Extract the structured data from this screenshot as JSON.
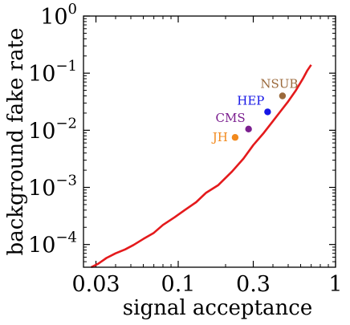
{
  "chart_data": {
    "type": "line",
    "xlabel": "signal acceptance",
    "ylabel": "background fake rate",
    "x_scale": "log",
    "y_scale": "log",
    "xlim": [
      0.025,
      1.0
    ],
    "ylim": [
      4e-05,
      1.0
    ],
    "x_ticks": [
      {
        "value": 0.03,
        "label": "0.03"
      },
      {
        "value": 0.1,
        "label": "0.1"
      },
      {
        "value": 0.3,
        "label": "0.3"
      },
      {
        "value": 1.0,
        "label": "1"
      }
    ],
    "y_ticks": [
      {
        "value": 0.0001,
        "base": "10",
        "exp": "−4"
      },
      {
        "value": 0.001,
        "base": "10",
        "exp": "−3"
      },
      {
        "value": 0.01,
        "base": "10",
        "exp": "−2"
      },
      {
        "value": 0.1,
        "base": "10",
        "exp": "−1"
      },
      {
        "value": 1.0,
        "base": "10",
        "exp": "0"
      }
    ],
    "grid": false,
    "series": [
      {
        "color": "#e41a1c",
        "points": [
          [
            0.028,
            4e-05
          ],
          [
            0.031,
            4.6e-05
          ],
          [
            0.035,
            5.8e-05
          ],
          [
            0.04,
            7e-05
          ],
          [
            0.046,
            8.2e-05
          ],
          [
            0.052,
            9.8e-05
          ],
          [
            0.06,
            0.000125
          ],
          [
            0.07,
            0.00016
          ],
          [
            0.08,
            0.00022
          ],
          [
            0.095,
            0.0003
          ],
          [
            0.11,
            0.0004
          ],
          [
            0.13,
            0.00055
          ],
          [
            0.15,
            0.0008
          ],
          [
            0.18,
            0.0011
          ],
          [
            0.22,
            0.0019
          ],
          [
            0.26,
            0.0032
          ],
          [
            0.3,
            0.0055
          ],
          [
            0.35,
            0.009
          ],
          [
            0.4,
            0.0145
          ],
          [
            0.45,
            0.022
          ],
          [
            0.5,
            0.032
          ],
          [
            0.56,
            0.05
          ],
          [
            0.62,
            0.08
          ],
          [
            0.66,
            0.11
          ],
          [
            0.7,
            0.14
          ]
        ]
      }
    ],
    "points": [
      {
        "label": "JH",
        "x": 0.23,
        "y": 0.0075,
        "color": "#f28a1e",
        "label_side": "left"
      },
      {
        "label": "CMS",
        "x": 0.28,
        "y": 0.0105,
        "color": "#7b1f8f",
        "label_side": "above-left"
      },
      {
        "label": "HEP",
        "x": 0.37,
        "y": 0.021,
        "color": "#1616e6",
        "label_side": "above-left"
      },
      {
        "label": "NSUB",
        "x": 0.46,
        "y": 0.04,
        "color": "#9b6a3c",
        "label_side": "above"
      }
    ]
  }
}
